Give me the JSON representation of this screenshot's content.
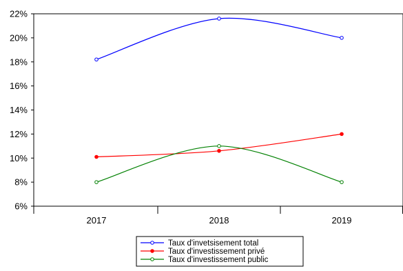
{
  "chart_data": {
    "type": "line",
    "title": "",
    "xlabel": "",
    "ylabel": "",
    "categories": [
      "2017",
      "2018",
      "2019"
    ],
    "ylim": [
      6,
      22
    ],
    "y_ticks": [
      "6%",
      "8%",
      "10%",
      "12%",
      "14%",
      "16%",
      "18%",
      "20%",
      "22%"
    ],
    "y_tick_values": [
      6,
      8,
      10,
      12,
      14,
      16,
      18,
      20,
      22
    ],
    "grid": false,
    "legend_position": "bottom-center",
    "series": [
      {
        "name": "Taux d'invetsisement total",
        "values": [
          18.2,
          21.6,
          20.0
        ],
        "color": "#0000ff",
        "marker": "open-circle"
      },
      {
        "name": "Taux d'investissement privé",
        "values": [
          10.1,
          10.6,
          12.0
        ],
        "color": "#ff0000",
        "marker": "filled-circle"
      },
      {
        "name": "Taux d'investissement public",
        "values": [
          8.0,
          11.0,
          8.0
        ],
        "color": "#008000",
        "marker": "open-circle"
      }
    ]
  }
}
